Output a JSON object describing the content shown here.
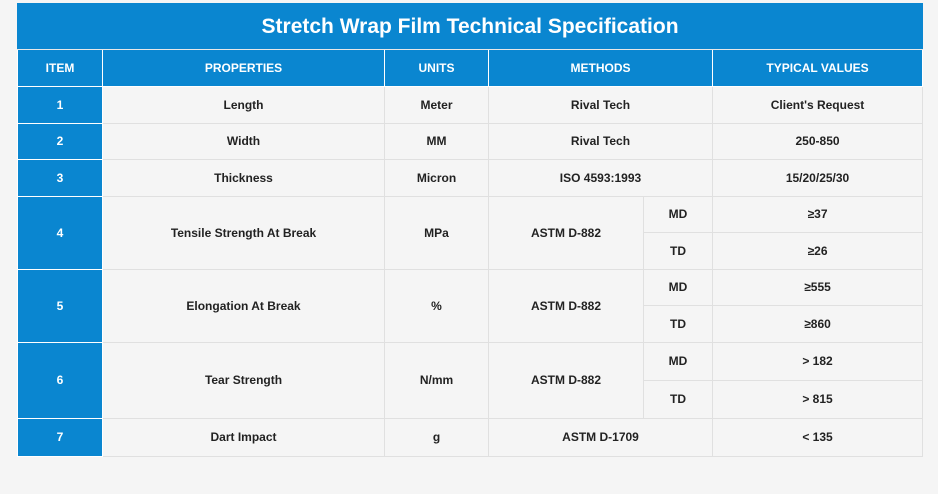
{
  "title": "Stretch Wrap Film Technical Specification",
  "headers": [
    "ITEM",
    "PROPERTIES",
    "UNITS",
    "METHODS",
    "TYPICAL VALUES"
  ],
  "rows": [
    {
      "item": "1",
      "property": "Length",
      "unit": "Meter",
      "method": "Rival Tech",
      "value": "Client's Request"
    },
    {
      "item": "2",
      "property": "Width",
      "unit": "MM",
      "method": "Rival Tech",
      "value": "250-850"
    },
    {
      "item": "3",
      "property": "Thickness",
      "unit": "Micron",
      "method": "ISO 4593:1993",
      "value": "15/20/25/30"
    },
    {
      "item": "4",
      "property": "Tensile Strength At Break",
      "unit": "MPa",
      "method": "ASTM D-882",
      "values": [
        {
          "direction": "MD",
          "value": "≥37"
        },
        {
          "direction": "TD",
          "value": "≥26"
        }
      ]
    },
    {
      "item": "5",
      "property": "Elongation At Break",
      "unit": "%",
      "method": "ASTM D-882",
      "values": [
        {
          "direction": "MD",
          "value": "≥555"
        },
        {
          "direction": "TD",
          "value": "≥860"
        }
      ]
    },
    {
      "item": "6",
      "property": "Tear Strength",
      "unit": "N/mm",
      "method": "ASTM D-882",
      "values": [
        {
          "direction": "MD",
          "value": "> 182"
        },
        {
          "direction": "TD",
          "value": "> 815"
        }
      ]
    },
    {
      "item": "7",
      "property": "Dart Impact",
      "unit": "g",
      "method": "ASTM D-1709",
      "value": "< 135"
    }
  ]
}
